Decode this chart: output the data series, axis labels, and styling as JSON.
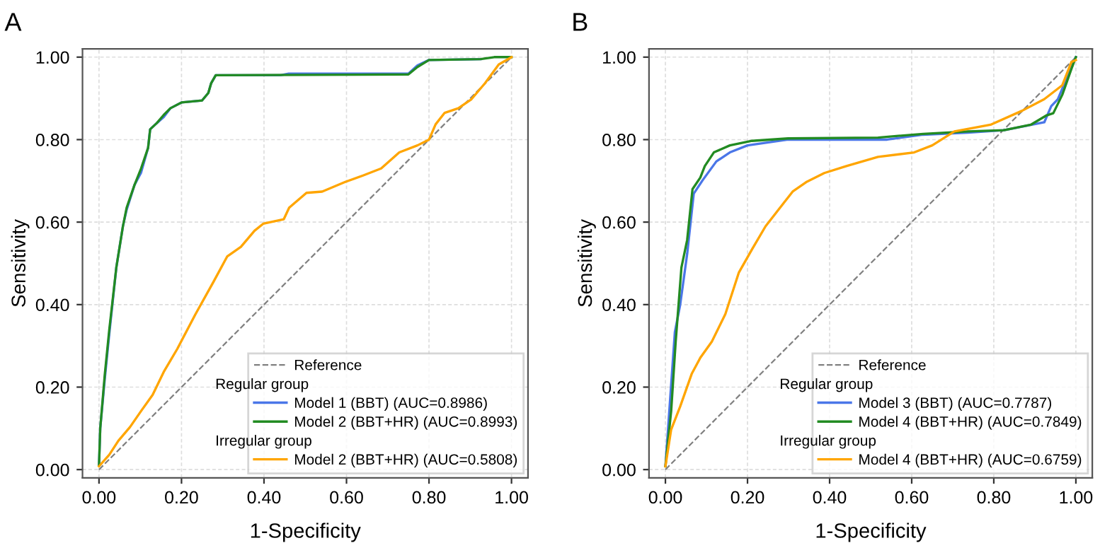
{
  "chart_data": [
    {
      "type": "line",
      "title": "A",
      "xlabel": "1-Specificity",
      "ylabel": "Sensitivity",
      "xlim": [
        -0.04,
        1.04
      ],
      "ylim": [
        -0.02,
        1.02
      ],
      "xticks": [
        {
          "value": 0,
          "label": "0.00"
        },
        {
          "value": 0.2,
          "label": "0.20"
        },
        {
          "value": 0.4,
          "label": "0.40"
        },
        {
          "value": 0.6,
          "label": "0.60"
        },
        {
          "value": 0.8,
          "label": "0.80"
        },
        {
          "value": 1,
          "label": "1.00"
        }
      ],
      "yticks": [
        {
          "value": 0,
          "label": "0.00"
        },
        {
          "value": 0.2,
          "label": "0.20"
        },
        {
          "value": 0.4,
          "label": "0.40"
        },
        {
          "value": 0.6,
          "label": "0.60"
        },
        {
          "value": 0.8,
          "label": "0.80"
        },
        {
          "value": 1,
          "label": "1.00"
        }
      ],
      "grid": true,
      "legend": "bottom right",
      "annotations": [
        "Regular group",
        "Irregular group"
      ],
      "series": [
        {
          "name": "Reference",
          "color": "#808080",
          "line_style": "dashed",
          "x": [
            0,
            1
          ],
          "values": [
            0,
            1
          ]
        },
        {
          "name": "Model 1 (BBT) (AUC=0.8986)",
          "color": "#4a76e8",
          "x": [
            0,
            0.003,
            0.014,
            0.025,
            0.042,
            0.058,
            0.067,
            0.086,
            0.102,
            0.119,
            0.124,
            0.14,
            0.157,
            0.173,
            0.2,
            0.25,
            0.265,
            0.272,
            0.283,
            0.44,
            0.46,
            0.75,
            0.772,
            0.8,
            0.925
          ],
          "values": [
            0.01,
            0.1,
            0.22,
            0.33,
            0.49,
            0.59,
            0.63,
            0.69,
            0.72,
            0.78,
            0.825,
            0.84,
            0.855,
            0.876,
            0.89,
            0.895,
            0.913,
            0.937,
            0.956,
            0.956,
            0.96,
            0.96,
            0.98,
            0.993,
            0.995
          ]
        },
        {
          "name": "Model 2 (BBT+HR) (AUC=0.8993)",
          "color": "#228b22",
          "x": [
            0,
            0.003,
            0.014,
            0.025,
            0.042,
            0.058,
            0.067,
            0.086,
            0.102,
            0.119,
            0.124,
            0.14,
            0.157,
            0.173,
            0.2,
            0.25,
            0.265,
            0.272,
            0.283,
            0.75,
            0.772,
            0.8,
            0.925,
            0.958,
            1
          ],
          "values": [
            0.01,
            0.1,
            0.23,
            0.34,
            0.49,
            0.59,
            0.635,
            0.69,
            0.73,
            0.78,
            0.825,
            0.84,
            0.86,
            0.876,
            0.89,
            0.895,
            0.913,
            0.937,
            0.956,
            0.958,
            0.976,
            0.993,
            0.995,
            1,
            1
          ]
        },
        {
          "name": "Model 2 (BBT+HR) (AUC=0.5808)",
          "color": "#ffa500",
          "x": [
            0,
            0.025,
            0.047,
            0.075,
            0.102,
            0.13,
            0.157,
            0.19,
            0.234,
            0.278,
            0.311,
            0.344,
            0.377,
            0.398,
            0.448,
            0.461,
            0.503,
            0.541,
            0.596,
            0.64,
            0.684,
            0.728,
            0.772,
            0.8,
            0.816,
            0.838,
            0.871,
            0.903,
            0.936,
            0.969,
            1
          ],
          "values": [
            0.008,
            0.036,
            0.07,
            0.103,
            0.142,
            0.181,
            0.237,
            0.293,
            0.377,
            0.456,
            0.517,
            0.54,
            0.579,
            0.596,
            0.607,
            0.635,
            0.671,
            0.674,
            0.697,
            0.713,
            0.73,
            0.769,
            0.786,
            0.8,
            0.837,
            0.865,
            0.876,
            0.898,
            0.937,
            0.982,
            1
          ]
        }
      ]
    },
    {
      "type": "line",
      "title": "B",
      "xlabel": "1-Specificity",
      "ylabel": "Sensitivity",
      "xlim": [
        -0.04,
        1.04
      ],
      "ylim": [
        -0.02,
        1.02
      ],
      "xticks": [
        {
          "value": 0,
          "label": "0.00"
        },
        {
          "value": 0.2,
          "label": "0.20"
        },
        {
          "value": 0.4,
          "label": "0.40"
        },
        {
          "value": 0.6,
          "label": "0.60"
        },
        {
          "value": 0.8,
          "label": "0.80"
        },
        {
          "value": 1,
          "label": "1.00"
        }
      ],
      "yticks": [
        {
          "value": 0,
          "label": "0.00"
        },
        {
          "value": 0.2,
          "label": "0.20"
        },
        {
          "value": 0.4,
          "label": "0.40"
        },
        {
          "value": 0.6,
          "label": "0.60"
        },
        {
          "value": 0.8,
          "label": "0.80"
        },
        {
          "value": 1,
          "label": "1.00"
        }
      ],
      "grid": true,
      "legend": "bottom right",
      "annotations": [
        "Regular group",
        "Irregular group"
      ],
      "series": [
        {
          "name": "Reference",
          "color": "#808080",
          "line_style": "dashed",
          "x": [
            0,
            1
          ],
          "values": [
            0,
            1
          ]
        },
        {
          "name": "Model 3 (BBT) (AUC=0.7787)",
          "color": "#4a76e8",
          "x": [
            0,
            0.023,
            0.036,
            0.053,
            0.069,
            0.091,
            0.124,
            0.157,
            0.2,
            0.299,
            0.54,
            0.628,
            0.737,
            0.825,
            0.923,
            0.94,
            0.956,
            0.989,
            1
          ],
          "values": [
            0.008,
            0.333,
            0.4,
            0.523,
            0.669,
            0.702,
            0.747,
            0.769,
            0.786,
            0.8,
            0.8,
            0.812,
            0.817,
            0.823,
            0.842,
            0.881,
            0.898,
            0.976,
            1
          ]
        },
        {
          "name": "Model 4 (BBT+HR) (AUC=0.7849)",
          "color": "#228b22",
          "x": [
            0,
            0.014,
            0.025,
            0.039,
            0.053,
            0.066,
            0.085,
            0.096,
            0.118,
            0.157,
            0.211,
            0.299,
            0.518,
            0.628,
            0.737,
            0.825,
            0.89,
            0.929,
            0.945,
            0.967,
            0.989,
            1
          ],
          "values": [
            0.008,
            0.142,
            0.31,
            0.49,
            0.557,
            0.68,
            0.708,
            0.736,
            0.769,
            0.786,
            0.797,
            0.803,
            0.805,
            0.814,
            0.82,
            0.823,
            0.836,
            0.859,
            0.864,
            0.909,
            0.971,
            1
          ]
        },
        {
          "name": "Model 4 (BBT+HR) (AUC=0.6759)",
          "color": "#ffa500",
          "x": [
            0,
            0.014,
            0.036,
            0.064,
            0.085,
            0.113,
            0.146,
            0.179,
            0.211,
            0.244,
            0.288,
            0.31,
            0.343,
            0.387,
            0.441,
            0.518,
            0.606,
            0.65,
            0.704,
            0.792,
            0.869,
            0.923,
            0.967,
            0.989,
            1
          ],
          "values": [
            0.008,
            0.097,
            0.153,
            0.232,
            0.271,
            0.31,
            0.377,
            0.478,
            0.534,
            0.59,
            0.646,
            0.674,
            0.697,
            0.719,
            0.736,
            0.758,
            0.769,
            0.786,
            0.82,
            0.836,
            0.87,
            0.898,
            0.932,
            0.988,
            0.993
          ]
        }
      ]
    }
  ]
}
